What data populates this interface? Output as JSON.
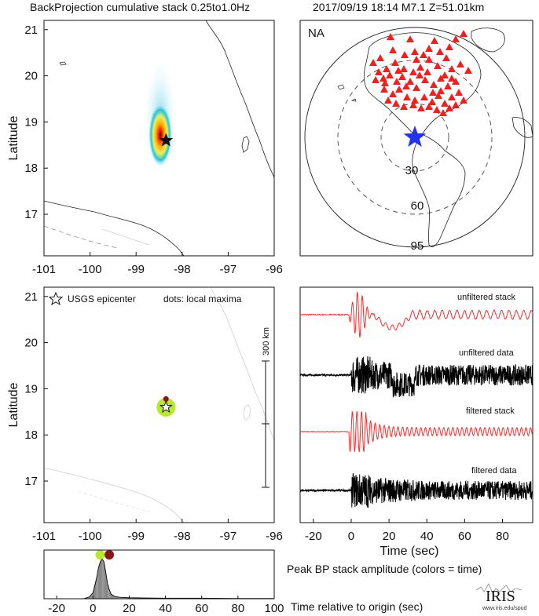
{
  "header": {
    "title_left": "BackProjection cumulative stack 0.25to1.0Hz",
    "title_right": "2017/09/19 18:14   M7.1   Z=51.01km"
  },
  "colors": {
    "stack_trace": "#ff2a2a",
    "data_trace": "#000000",
    "station_marker": "#ff1a1a",
    "epicenter_star_map": "#2333ee",
    "maxima_dot": "#8a1515",
    "epicenter_disk": "#b6ea2c",
    "amplitude_fill": "#bdbdbd"
  },
  "chart_data": [
    {
      "name": "backprojection-map",
      "type": "heatmap",
      "xlim": [
        -101,
        -96
      ],
      "ylim": [
        16.1,
        21.2
      ],
      "xticks": [
        "-101",
        "-100",
        "-99",
        "-98",
        "-97",
        "-96"
      ],
      "yticks": [
        "17",
        "18",
        "19",
        "20",
        "21"
      ],
      "ylabel": "Latitude",
      "xlabel": "",
      "peak": {
        "lon": -98.35,
        "lat": 18.6
      },
      "epicenter": {
        "lon": -98.35,
        "lat": 18.6
      }
    },
    {
      "name": "station-map",
      "type": "scatter",
      "region_label": "NA",
      "ring_labels": [
        "30",
        "60",
        "95"
      ],
      "marker": "triangle"
    },
    {
      "name": "local-maxima-map",
      "type": "scatter",
      "xlim": [
        -101,
        -96
      ],
      "ylim": [
        16.1,
        21.2
      ],
      "xticks": [
        "-101",
        "-100",
        "-99",
        "-98",
        "-97",
        "-96"
      ],
      "yticks": [
        "17",
        "18",
        "19",
        "20",
        "21"
      ],
      "ylabel": "Latitude",
      "legend_epicenter": "USGS epicenter",
      "legend_maxima": "dots: local maxima",
      "scalebar_label": "300 km",
      "epicenter": {
        "lon": -98.35,
        "lat": 18.6
      },
      "maxima": [
        {
          "lon": -98.35,
          "lat": 18.78
        }
      ]
    },
    {
      "name": "waveforms",
      "type": "line",
      "xlim": [
        -27,
        96
      ],
      "xticks": [
        "-20",
        "0",
        "20",
        "40",
        "60",
        "80"
      ],
      "xlabel": "Time (sec)",
      "traces": [
        "unfiltered stack",
        "unfiltered data",
        "filtered stack",
        "filtered data"
      ]
    },
    {
      "name": "peak-amplitude",
      "type": "area",
      "title": "Peak BP stack amplitude (colors = time)",
      "xlabel": "Time relative to origin (sec)",
      "xlim": [
        -27,
        100
      ],
      "xticks": [
        "-20",
        "0",
        "20",
        "40",
        "60",
        "80",
        "100"
      ],
      "x": [
        -27,
        -5,
        -2,
        0,
        2,
        3,
        4,
        5,
        6,
        7,
        8,
        9,
        10,
        12,
        15,
        20,
        30,
        40,
        60,
        80,
        100
      ],
      "y": [
        0,
        0,
        0.04,
        0.13,
        0.45,
        0.67,
        0.8,
        0.88,
        0.82,
        0.6,
        0.35,
        0.2,
        0.1,
        0.05,
        0.03,
        0.02,
        0.015,
        0.01,
        0.01,
        0.005,
        0.005
      ],
      "maxima_times": [
        4,
        9
      ]
    }
  ],
  "footer": {
    "logo_text": "IRIS",
    "logo_url": "www.iris.edu/spud"
  }
}
